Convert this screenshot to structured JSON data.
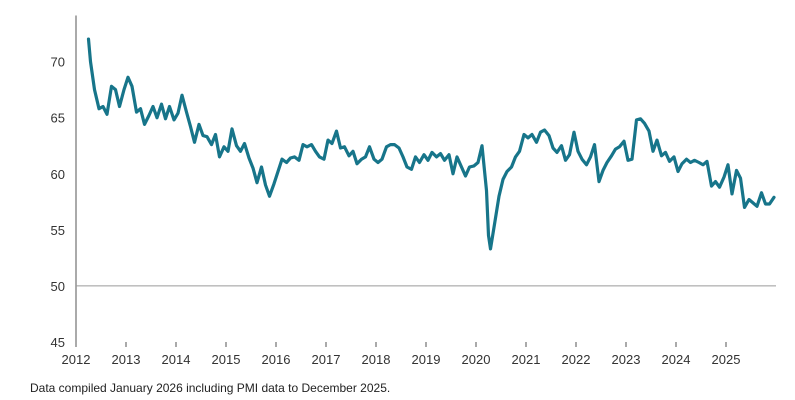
{
  "chart_data": {
    "type": "line",
    "x_unit": "year",
    "ylim": [
      45,
      75
    ],
    "xlim": [
      2012,
      2026
    ],
    "y_ticks": [
      "45",
      "50",
      "55",
      "60",
      "65",
      "70"
    ],
    "x_ticks": [
      "2012",
      "2013",
      "2014",
      "2015",
      "2016",
      "2017",
      "2018",
      "2019",
      "2020",
      "2021",
      "2022",
      "2023",
      "2024",
      "2025"
    ],
    "grid": "none",
    "reference_line": 50,
    "line_color": "#17758a",
    "series": [
      {
        "x": [
          2012.25,
          2012.29,
          2012.37,
          2012.46,
          2012.54,
          2012.62,
          2012.71,
          2012.79,
          2012.87,
          2012.96,
          2013.04,
          2013.12,
          2013.21,
          2013.29,
          2013.37,
          2013.46,
          2013.54,
          2013.62,
          2013.71,
          2013.79,
          2013.87,
          2013.96,
          2014.04,
          2014.12,
          2014.21,
          2014.29,
          2014.37,
          2014.46,
          2014.54,
          2014.62,
          2014.71,
          2014.79,
          2014.87,
          2014.96,
          2015.04,
          2015.12,
          2015.21,
          2015.29,
          2015.37,
          2015.46,
          2015.54,
          2015.62,
          2015.71,
          2015.79,
          2015.87,
          2015.96,
          2016.04,
          2016.12,
          2016.21,
          2016.29,
          2016.37,
          2016.46,
          2016.54,
          2016.62,
          2016.71,
          2016.79,
          2016.87,
          2016.96,
          2017.04,
          2017.12,
          2017.21,
          2017.29,
          2017.37,
          2017.46,
          2017.54,
          2017.62,
          2017.71,
          2017.79,
          2017.87,
          2017.96,
          2018.04,
          2018.12,
          2018.21,
          2018.29,
          2018.37,
          2018.46,
          2018.54,
          2018.62,
          2018.71,
          2018.79,
          2018.87,
          2018.96,
          2019.04,
          2019.12,
          2019.21,
          2019.29,
          2019.37,
          2019.46,
          2019.54,
          2019.62,
          2019.71,
          2019.79,
          2019.87,
          2019.96,
          2020.04,
          2020.12,
          2020.21,
          2020.25,
          2020.29,
          2020.37,
          2020.46,
          2020.54,
          2020.62,
          2020.71,
          2020.79,
          2020.87,
          2020.96,
          2021.04,
          2021.12,
          2021.21,
          2021.29,
          2021.37,
          2021.46,
          2021.54,
          2021.62,
          2021.71,
          2021.79,
          2021.87,
          2021.96,
          2022.04,
          2022.12,
          2022.21,
          2022.29,
          2022.37,
          2022.46,
          2022.54,
          2022.62,
          2022.71,
          2022.79,
          2022.87,
          2022.96,
          2023.04,
          2023.12,
          2023.21,
          2023.29,
          2023.37,
          2023.46,
          2023.54,
          2023.62,
          2023.71,
          2023.79,
          2023.87,
          2023.96,
          2024.04,
          2024.12,
          2024.21,
          2024.29,
          2024.37,
          2024.46,
          2024.54,
          2024.62,
          2024.71,
          2024.79,
          2024.87,
          2024.96,
          2025.04,
          2025.12,
          2025.21,
          2025.29,
          2025.37,
          2025.46,
          2025.54,
          2025.62,
          2025.71,
          2025.79,
          2025.87,
          2025.96
        ],
        "values": [
          72.0,
          70.0,
          67.5,
          65.8,
          66.0,
          65.3,
          67.8,
          67.5,
          66.0,
          67.5,
          68.6,
          67.8,
          65.5,
          65.8,
          64.4,
          65.2,
          66.0,
          65.0,
          66.2,
          64.9,
          66.0,
          64.8,
          65.4,
          67.0,
          65.5,
          64.2,
          62.8,
          64.4,
          63.4,
          63.3,
          62.6,
          63.5,
          61.5,
          62.4,
          62.0,
          64.0,
          62.5,
          62.0,
          62.7,
          61.4,
          60.5,
          59.2,
          60.6,
          59.0,
          58.0,
          59.1,
          60.2,
          61.3,
          61.0,
          61.4,
          61.5,
          61.2,
          62.6,
          62.4,
          62.6,
          62.0,
          61.5,
          61.3,
          63.0,
          62.7,
          63.8,
          62.3,
          62.4,
          61.6,
          62.0,
          60.9,
          61.3,
          61.5,
          62.4,
          61.3,
          61.0,
          61.3,
          62.4,
          62.6,
          62.6,
          62.3,
          61.5,
          60.6,
          60.4,
          61.5,
          61.0,
          61.7,
          61.2,
          61.9,
          61.5,
          61.8,
          61.2,
          61.7,
          60.0,
          61.5,
          60.6,
          59.8,
          60.6,
          60.7,
          61.0,
          62.5,
          58.5,
          54.5,
          53.3,
          55.5,
          58.0,
          59.5,
          60.2,
          60.6,
          61.5,
          62.0,
          63.5,
          63.2,
          63.5,
          62.8,
          63.7,
          63.9,
          63.4,
          62.3,
          61.9,
          62.5,
          61.2,
          61.7,
          63.7,
          62.0,
          61.3,
          60.8,
          61.5,
          62.6,
          59.3,
          60.3,
          61.0,
          61.6,
          62.2,
          62.4,
          62.9,
          61.2,
          61.3,
          64.8,
          64.9,
          64.5,
          63.8,
          62.0,
          63.0,
          61.6,
          61.9,
          61.1,
          61.5,
          60.2,
          60.9,
          61.3,
          61.0,
          61.2,
          61.0,
          60.8,
          61.1,
          58.9,
          59.3,
          58.8,
          59.7,
          60.8,
          58.2,
          60.3,
          59.6,
          57.0,
          57.7,
          57.4,
          57.1,
          58.3,
          57.3,
          57.3,
          57.9
        ]
      }
    ],
    "footnote": "Data compiled January 2026 including PMI data to December 2025."
  }
}
